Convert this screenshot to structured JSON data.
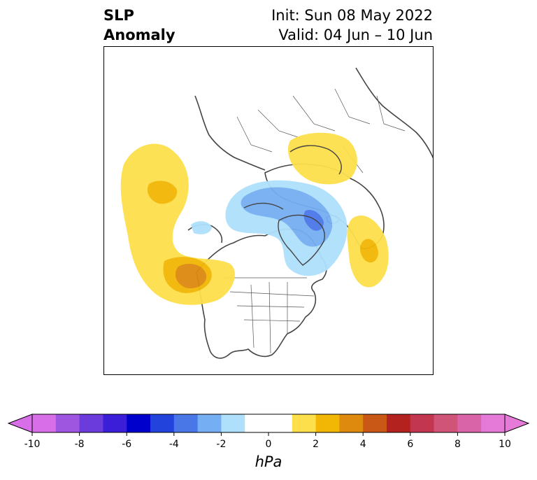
{
  "header": {
    "left_line1": "SLP",
    "left_line2": "Anomaly",
    "right_line1": "Init: Sun 08 May 2022",
    "right_line2": "Valid: 04 Jun – 10 Jun"
  },
  "colorbar": {
    "unit": "hPa",
    "tick_labels": [
      "-10",
      "-8",
      "-6",
      "-4",
      "-2",
      "0",
      "2",
      "4",
      "6",
      "8",
      "10"
    ],
    "colors": [
      "#d86fe8",
      "#9e55e0",
      "#6b3bdc",
      "#3a1ed8",
      "#0000cd",
      "#2244dd",
      "#4a77e8",
      "#75aef2",
      "#aee0fc",
      "#ffffff",
      "#ffffff",
      "#fddf4b",
      "#f2b705",
      "#dd8a0f",
      "#c95715",
      "#b42220",
      "#c23650",
      "#d05378",
      "#da64a8",
      "#e67ad8"
    ]
  },
  "map": {
    "projection": "north-polar-stereographic",
    "anomaly_features": [
      {
        "name": "positive anomaly over North Pacific",
        "sign": "positive",
        "max_level_hPa": 4
      },
      {
        "name": "positive anomaly over Scandinavia / Baltic",
        "sign": "positive",
        "max_level_hPa": 2
      },
      {
        "name": "positive anomaly over North Atlantic",
        "sign": "positive",
        "max_level_hPa": 2
      },
      {
        "name": "negative anomaly over Arctic / Greenland",
        "sign": "negative",
        "min_level_hPa": -4
      }
    ]
  }
}
